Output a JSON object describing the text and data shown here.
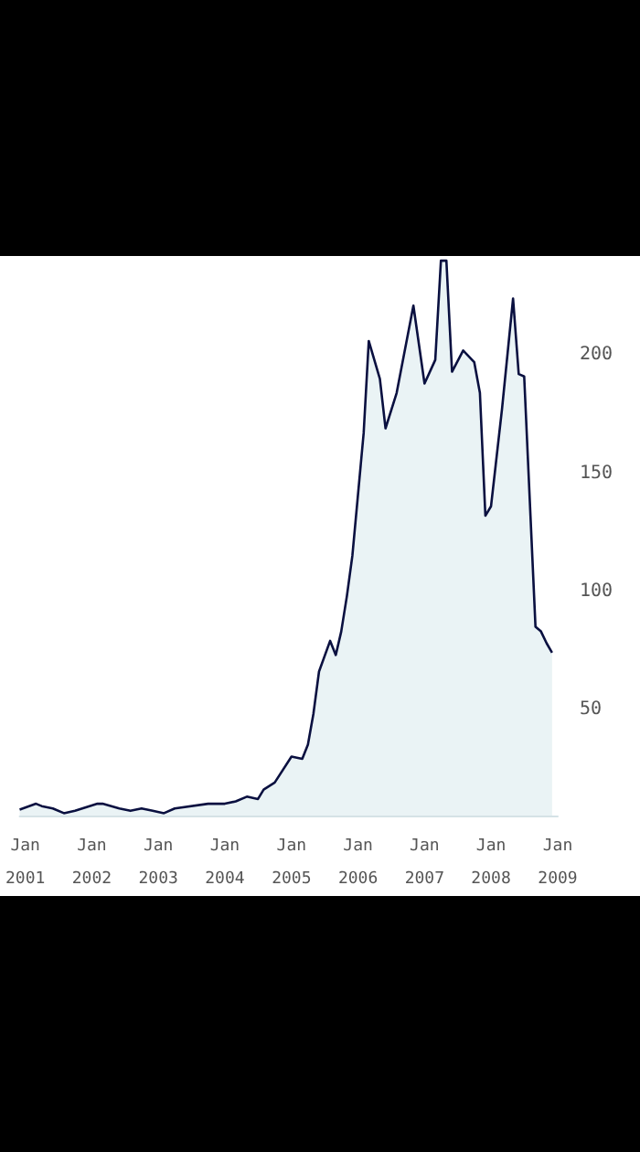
{
  "chart_data": {
    "type": "area",
    "x": [
      "2000-12",
      "2001-03",
      "2001-04",
      "2001-06",
      "2001-08",
      "2001-10",
      "2002-02",
      "2002-03",
      "2002-06",
      "2002-08",
      "2002-10",
      "2002-12",
      "2003-02",
      "2003-04",
      "2003-10",
      "2004-01",
      "2004-03",
      "2004-05",
      "2004-07",
      "2004-08",
      "2004-10",
      "2005-01",
      "2005-03",
      "2005-04",
      "2005-05",
      "2005-06",
      "2005-08",
      "2005-09",
      "2005-10",
      "2005-11",
      "2005-12",
      "2006-02",
      "2006-03",
      "2006-05",
      "2006-06",
      "2006-08",
      "2006-11",
      "2007-01",
      "2007-03",
      "2007-04",
      "2007-05",
      "2007-06",
      "2007-08",
      "2007-10",
      "2007-11",
      "2007-12",
      "2008-01",
      "2008-03",
      "2008-05",
      "2008-06",
      "2008-07",
      "2008-09",
      "2008-10",
      "2008-11",
      "2008-12"
    ],
    "series": [
      {
        "color": "#0a1040",
        "values": [
          7.5,
          10,
          9,
          8,
          6,
          7,
          10,
          10,
          8,
          7,
          8,
          7,
          6,
          8,
          10,
          10,
          11,
          13,
          12,
          16,
          19,
          30,
          29,
          35,
          48,
          66,
          79,
          73,
          83,
          98,
          115,
          167,
          206,
          190,
          169,
          184,
          221,
          188,
          198,
          240,
          240,
          193,
          202,
          197,
          184,
          132,
          136,
          177,
          224,
          192,
          191,
          85,
          83,
          78,
          74
        ]
      }
    ],
    "xlim": [
      "2000-12",
      "2009-01"
    ],
    "xticks": [
      {
        "value": "2001-01",
        "label": "Jan\n2001"
      },
      {
        "value": "2002-01",
        "label": "Jan\n2002"
      },
      {
        "value": "2003-01",
        "label": "Jan\n2003"
      },
      {
        "value": "2004-01",
        "label": "Jan\n2004"
      },
      {
        "value": "2005-01",
        "label": "Jan\n2005"
      },
      {
        "value": "2006-01",
        "label": "Jan\n2006"
      },
      {
        "value": "2007-01",
        "label": "Jan\n2007"
      },
      {
        "value": "2008-01",
        "label": "Jan\n2008"
      },
      {
        "value": "2009-01",
        "label": "Jan\n2009"
      }
    ],
    "ylim": [
      5,
      242
    ],
    "yticks": [
      50,
      100,
      150,
      200
    ],
    "grid": false,
    "marker": "none"
  }
}
